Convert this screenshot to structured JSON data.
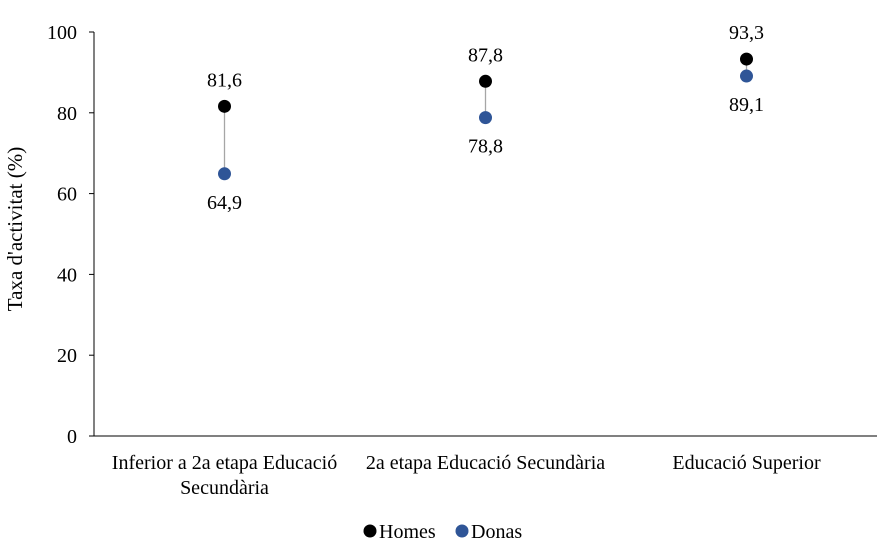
{
  "chart_data": {
    "type": "dot",
    "categories": [
      "Inferior a 2a etapa Educació Secundària",
      "2a etapa Educació Secundària",
      "Educació Superior"
    ],
    "category_lines": [
      [
        "Inferior a 2a etapa Educació",
        "Secundària"
      ],
      [
        "2a etapa Educació Secundària"
      ],
      [
        "Educació Superior"
      ]
    ],
    "series": [
      {
        "name": "Homes",
        "values": [
          81.6,
          87.8,
          93.3
        ],
        "labels": [
          "81,6",
          "87,8",
          "93,3"
        ],
        "color": "#000000",
        "label_position": "above"
      },
      {
        "name": "Donas",
        "values": [
          64.9,
          78.8,
          89.1
        ],
        "labels": [
          "64,9",
          "78,8",
          "89,1"
        ],
        "color": "#2f5597",
        "label_position": "below"
      }
    ],
    "connector_color": "#a6a6a6",
    "xlabel": "",
    "ylabel": "Taxa d'activitat (%)",
    "ylim": [
      0,
      100
    ],
    "yticks": [
      0,
      20,
      40,
      60,
      80,
      100
    ],
    "grid": false,
    "legend_position": "bottom"
  }
}
